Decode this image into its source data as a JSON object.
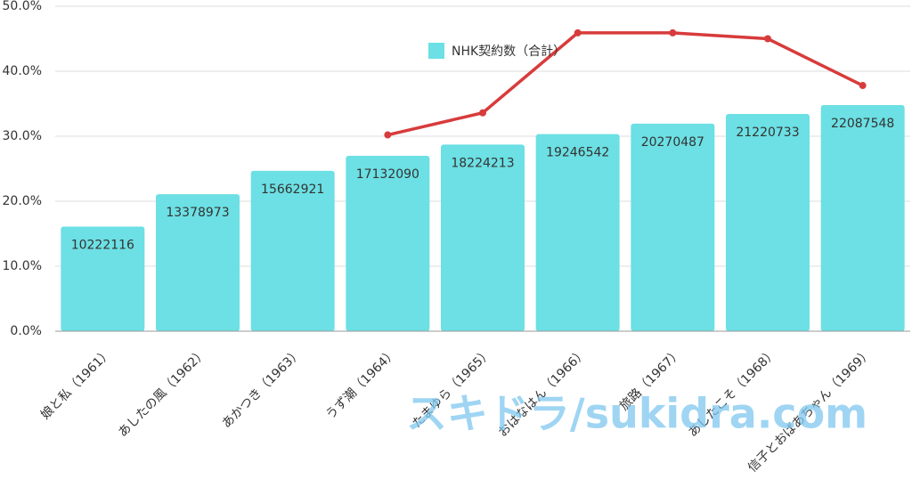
{
  "chart_data": {
    "type": "bar-line",
    "categories": [
      "娘と私（1961）",
      "あしたの風（1962）",
      "あかつき（1963）",
      "うず潮（1964）",
      "たまゆら（1965）",
      "おはなはん（1966）",
      "旅路（1967）",
      "あしたこそ（1968）",
      "信子とおばあちゃん（1969）"
    ],
    "series": [
      {
        "name": "NHK契約数（合計）",
        "type": "bar",
        "color": "#6ce0e4",
        "axis": "y2",
        "values": [
          10222116,
          13378973,
          15662921,
          17132090,
          18224213,
          19246542,
          20270487,
          21220733,
          22087548
        ]
      },
      {
        "type": "line",
        "color": "#d83b3b",
        "values": [
          null,
          null,
          null,
          30.2,
          33.6,
          45.9,
          45.9,
          45.0,
          37.8
        ]
      }
    ],
    "ylim": [
      0,
      50
    ],
    "yticks": [
      {
        "value": 0,
        "label": "0.0%"
      },
      {
        "value": 10,
        "label": "10.0%"
      },
      {
        "value": 20,
        "label": "20.0%"
      },
      {
        "value": 30,
        "label": "30.0%"
      },
      {
        "value": 40,
        "label": "40.0%"
      },
      {
        "value": 50,
        "label": "50.0%"
      }
    ],
    "y2lim": [
      0,
      31740000
    ],
    "grid": true,
    "legend": "top",
    "watermark": "スキドラ/sukidra.com"
  }
}
